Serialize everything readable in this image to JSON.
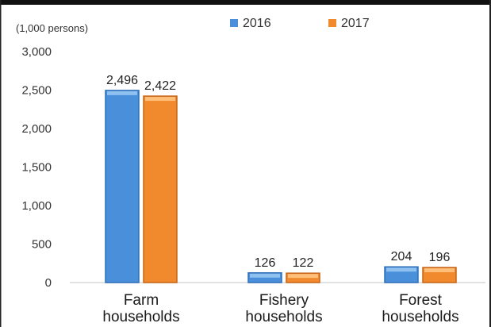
{
  "chart_data": {
    "type": "bar",
    "unit_label": "(1,000 persons)",
    "categories": [
      [
        "Farm",
        "households"
      ],
      [
        "Fishery",
        "households"
      ],
      [
        "Forest",
        "households"
      ]
    ],
    "series": [
      {
        "name": "2016",
        "values": [
          2496,
          126,
          204
        ],
        "labels": [
          "2,496",
          "126",
          "204"
        ],
        "color": "#4a8fd9"
      },
      {
        "name": "2017",
        "values": [
          2422,
          122,
          196
        ],
        "labels": [
          "2,422",
          "122",
          "196"
        ],
        "color": "#f08a2c"
      }
    ],
    "yticks": [
      0,
      500,
      1000,
      1500,
      2000,
      2500,
      3000
    ],
    "ytick_labels": [
      "0",
      "500",
      "1,000",
      "1,500",
      "2,000",
      "2,500",
      "3,000"
    ],
    "ylim": [
      0,
      3000
    ],
    "legend_position": "top-center",
    "grid": false
  }
}
